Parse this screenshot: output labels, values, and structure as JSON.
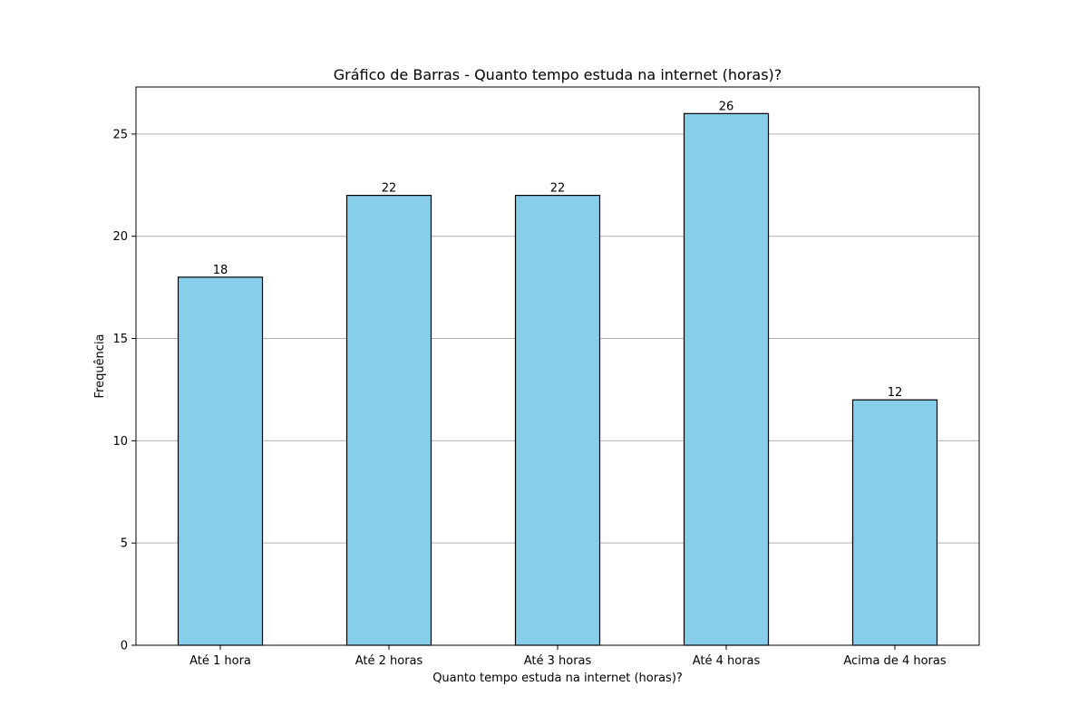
{
  "chart_data": {
    "type": "bar",
    "title": "Gráfico de Barras - Quanto tempo estuda na internet (horas)?",
    "xlabel": "Quanto tempo estuda na internet (horas)?",
    "ylabel": "Frequência",
    "categories": [
      "Até 1 hora",
      "Até 2 horas",
      "Até 3 horas",
      "Até 4 horas",
      "Acima de 4 horas"
    ],
    "values": [
      18,
      22,
      22,
      26,
      12
    ],
    "ylim": [
      0,
      27.3
    ],
    "yticks": [
      0,
      5,
      10,
      15,
      20,
      25
    ],
    "grid": "y",
    "bar_color": "#87ceeb",
    "edge_color": "#000000",
    "data_labels": true
  }
}
